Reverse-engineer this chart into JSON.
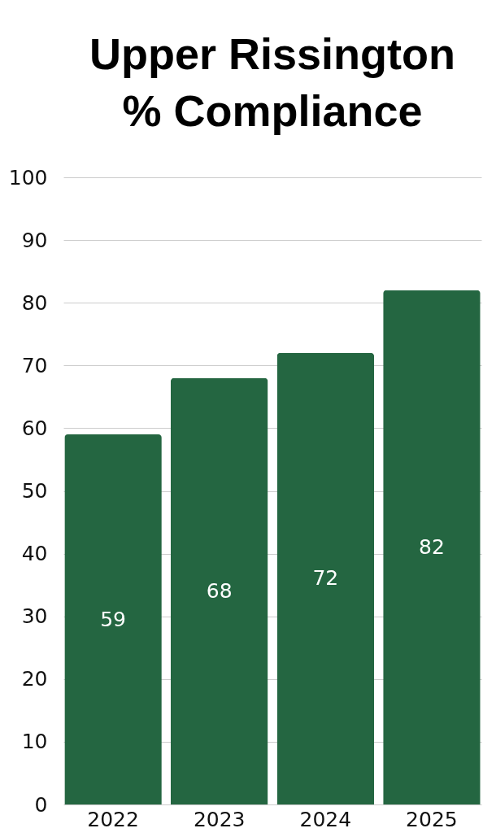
{
  "chart_data": {
    "type": "bar",
    "title": "Upper Rissington % Compliance",
    "categories": [
      "2022",
      "2023",
      "2024",
      "2025"
    ],
    "values": [
      59,
      68,
      72,
      82
    ],
    "color": "#246641",
    "ylim": [
      0,
      100
    ],
    "yticks": [
      0,
      10,
      20,
      30,
      40,
      50,
      60,
      70,
      80,
      90,
      100
    ],
    "grid": "y",
    "data_labels": true
  }
}
